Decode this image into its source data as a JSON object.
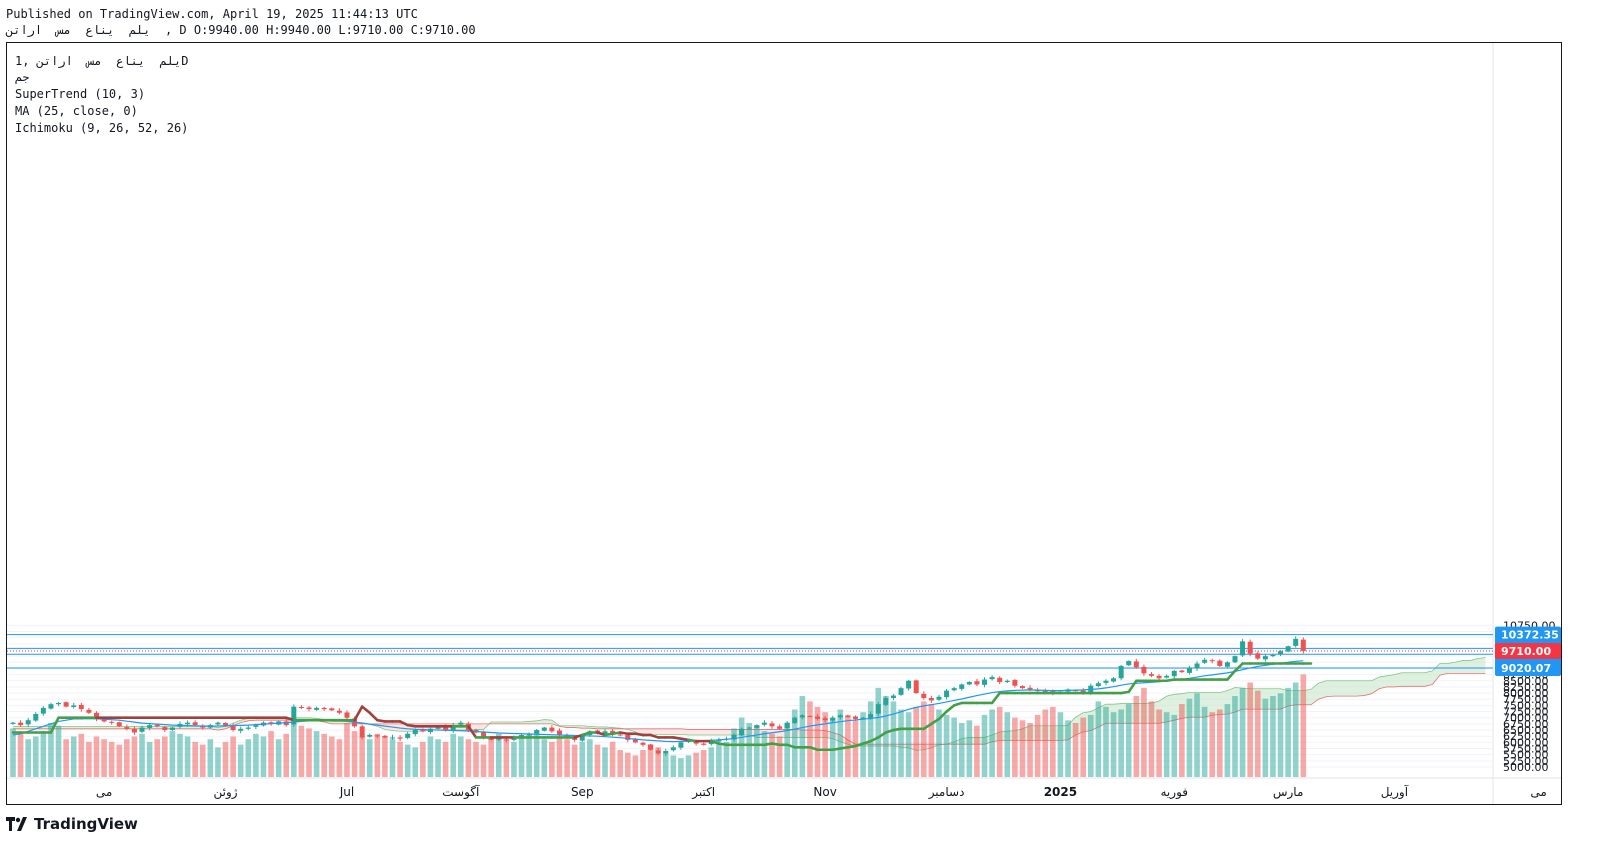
{
  "header": {
    "published": "Published on TradingView.com, April 19, 2025 11:44:13 UTC",
    "ohlc_line": "یلم  یناع  مس  اراتن  , D O:9940.00 H:9940.00 L:9710.00 C:9710.00"
  },
  "legend": {
    "symbol": "یلم  یناع  مس  اراتن ,1D",
    "exchange": "جم",
    "supertrend": "SuperTrend (10, 3)",
    "ma": "MA (25, close, 0)",
    "ichimoku": "Ichimoku (9, 26, 52, 26)"
  },
  "logo": {
    "text": "TradingView"
  },
  "chart_data": {
    "type": "candlestick",
    "interval": "1D",
    "ylim": [
      4900,
      10900
    ],
    "y_ticks": [
      5000,
      5250,
      5500,
      5750,
      6000,
      6250,
      6500,
      6750,
      7000,
      7250,
      7500,
      7750,
      8000,
      8250,
      8500,
      8750,
      9000,
      9250,
      9500,
      9750,
      10000,
      10250,
      10500,
      10750
    ],
    "y_tick_labels": [
      "5000.00",
      "5250.00",
      "5500.00",
      "5750.00",
      "6000.00",
      "6250.00",
      "6500.00",
      "6750.00",
      "7000.00",
      "7250.00",
      "7500.00",
      "7750.00",
      "8000.00",
      "8250.00",
      "8500.00",
      "8750.00",
      "9000.00",
      "9250.00",
      "9500.00",
      "9750.00",
      "10000.00",
      "10250.00",
      "10500.00",
      "10750.00"
    ],
    "x_labels": [
      {
        "label": "می",
        "bar": 12
      },
      {
        "label": "ژوئن",
        "bar": 28
      },
      {
        "label": "Jul",
        "bar": 44
      },
      {
        "label": "آگوست",
        "bar": 59
      },
      {
        "label": "Sep",
        "bar": 75
      },
      {
        "label": "اکتبر",
        "bar": 91
      },
      {
        "label": "Nov",
        "bar": 107
      },
      {
        "label": "دسامبر",
        "bar": 123
      },
      {
        "label": "2025",
        "bar": 138
      },
      {
        "label": "فوریه",
        "bar": 153
      },
      {
        "label": "مارس",
        "bar": 168
      },
      {
        "label": "آوریل",
        "bar": 182
      },
      {
        "label": "می",
        "bar": 201
      }
    ],
    "horizontal_lines": [
      {
        "value": 10372.35,
        "label": "10372.35",
        "color": "#2196f3"
      },
      {
        "value": 9814.1,
        "label": "9814.10",
        "color": "#2196f3"
      },
      {
        "value": 9573.73,
        "label": "9573.73",
        "color": "#2196f3"
      },
      {
        "value": 9020.07,
        "label": "9020.07",
        "color": "#2196f3"
      }
    ],
    "last_price": {
      "value": 9710.0,
      "label": "9710.00",
      "color": "#f23645"
    },
    "colors": {
      "up": "#26a69a",
      "down": "#ef5350",
      "supertrend_up": "#43a047",
      "supertrend_down": "#a0413c",
      "ma": "#2196f3",
      "cloud_bull": "#c8e6c9",
      "cloud_bear": "#f8d7d5"
    },
    "closes": [
      6800,
      6700,
      6900,
      7150,
      7400,
      7550,
      7600,
      7450,
      7500,
      7350,
      7200,
      6950,
      6850,
      6800,
      6650,
      6550,
      6400,
      6600,
      6700,
      6650,
      6500,
      6600,
      6750,
      6800,
      6700,
      6600,
      6700,
      6800,
      6650,
      6500,
      6550,
      6600,
      6700,
      6800,
      6750,
      6850,
      6700,
      7450,
      7400,
      7350,
      7400,
      7350,
      7300,
      7200,
      7000,
      6650,
      6200,
      6300,
      6250,
      6200,
      6200,
      6150,
      6350,
      6500,
      6450,
      6550,
      6600,
      6500,
      6700,
      6800,
      6500,
      6400,
      6200,
      6100,
      6150,
      6100,
      6200,
      6300,
      6350,
      6500,
      6600,
      6450,
      6300,
      6200,
      6100,
      6300,
      6450,
      6350,
      6450,
      6350,
      6300,
      6100,
      6000,
      5900,
      5700,
      5550,
      5650,
      5800,
      6000,
      6100,
      5950,
      5900,
      6050,
      6100,
      6150,
      6300,
      6550,
      6600,
      6700,
      6800,
      6650,
      6550,
      6800,
      7000,
      7100,
      7050,
      6950,
      6900,
      7000,
      7100,
      7050,
      6950,
      7000,
      7150,
      7550,
      7800,
      7900,
      8200,
      8500,
      8000,
      7800,
      7700,
      7850,
      8100,
      8200,
      8350,
      8450,
      8350,
      8550,
      8650,
      8450,
      8500,
      8300,
      8200,
      8150,
      8100,
      8050,
      8000,
      8050,
      8150,
      8100,
      8000,
      8300,
      8400,
      8500,
      8600,
      9100,
      9300,
      9050,
      8800,
      8700,
      8600,
      8700,
      8900,
      8850,
      9000,
      9200,
      9350,
      9300,
      9100,
      9250,
      9500,
      10100,
      9600,
      9400,
      9500,
      9550,
      9700,
      9900,
      10200,
      9710
    ],
    "volumes": [
      180,
      160,
      140,
      150,
      170,
      200,
      190,
      140,
      150,
      160,
      130,
      150,
      140,
      130,
      120,
      140,
      150,
      160,
      130,
      140,
      150,
      170,
      160,
      150,
      130,
      120,
      140,
      110,
      130,
      150,
      120,
      140,
      160,
      150,
      170,
      140,
      160,
      200,
      190,
      180,
      170,
      160,
      150,
      140,
      200,
      170,
      150,
      140,
      160,
      150,
      140,
      130,
      120,
      110,
      130,
      150,
      140,
      130,
      160,
      150,
      140,
      130,
      120,
      150,
      160,
      140,
      130,
      150,
      160,
      170,
      140,
      130,
      150,
      140,
      120,
      130,
      140,
      120,
      110,
      130,
      100,
      90,
      80,
      100,
      120,
      110,
      90,
      80,
      70,
      80,
      90,
      100,
      110,
      120,
      130,
      180,
      220,
      200,
      190,
      170,
      160,
      150,
      200,
      250,
      300,
      280,
      260,
      240,
      220,
      250,
      230,
      210,
      240,
      280,
      330,
      300,
      280,
      250,
      240,
      260,
      280,
      270,
      250,
      230,
      220,
      200,
      210,
      190,
      230,
      250,
      260,
      240,
      220,
      210,
      200,
      230,
      250,
      260,
      240,
      210,
      200,
      220,
      230,
      280,
      260,
      240,
      250,
      270,
      300,
      330,
      280,
      250,
      240,
      230,
      270,
      290,
      310,
      260,
      240,
      250,
      270,
      300,
      330,
      350,
      320,
      290,
      300,
      310,
      330,
      350,
      380
    ],
    "supertrend": [
      6400,
      6400,
      6400,
      6400,
      6400,
      6400,
      7000,
      7000,
      7000,
      7000,
      7000,
      7000,
      7000,
      7000,
      7000,
      7000,
      7000,
      7000,
      7000,
      7000,
      7000,
      7000,
      7000,
      7000,
      7000,
      7000,
      7000,
      7000,
      7000,
      7000,
      7000,
      7000,
      7000,
      7000,
      7000,
      7000,
      7000,
      6900,
      6900,
      6900,
      6900,
      6900,
      6900,
      6900,
      6900,
      6900,
      7450,
      7200,
      6900,
      6850,
      6850,
      6850,
      6700,
      6650,
      6650,
      6650,
      6650,
      6650,
      6650,
      6650,
      6650,
      6200,
      6200,
      6200,
      6200,
      6200,
      6200,
      6200,
      6200,
      6200,
      6200,
      6200,
      6200,
      6200,
      6200,
      6300,
      6400,
      6400,
      6300,
      6350,
      6400,
      6350,
      6350,
      6300,
      6300,
      6200,
      6200,
      6200,
      6150,
      6100,
      6050,
      6050,
      6050,
      5950,
      5900,
      5900,
      5900,
      5900,
      5900,
      5900,
      5950,
      5900,
      5900,
      5800,
      5800,
      5800,
      5700,
      5700,
      5700,
      5750,
      5800,
      5850,
      5950,
      6050,
      6200,
      6400,
      6500,
      6550,
      6550,
      6550,
      6550,
      6750,
      6950,
      7250,
      7500,
      7600,
      7600,
      7600,
      7600,
      7600,
      8000,
      8000,
      8000,
      8000,
      8000,
      8000,
      8000,
      8000,
      8000,
      8000,
      8000,
      8000,
      8000,
      8000,
      8000,
      8000,
      8000,
      8050,
      8500,
      8500,
      8500,
      8500,
      8500,
      8550,
      8550,
      8550,
      8550,
      8550,
      8550,
      8550,
      8550,
      8900,
      9200,
      9200,
      9200,
      9200,
      9200,
      9200,
      9200,
      9200,
      9200,
      9200
    ],
    "ma": [
      6300,
      6350,
      6450,
      6550,
      6650,
      6750,
      6850,
      6900,
      6950,
      6950,
      6960,
      6950,
      6940,
      6920,
      6900,
      6860,
      6820,
      6780,
      6760,
      6740,
      6720,
      6700,
      6690,
      6680,
      6670,
      6665,
      6660,
      6665,
      6670,
      6680,
      6690,
      6700,
      6720,
      6740,
      6760,
      6780,
      6800,
      6820,
      6850,
      6870,
      6890,
      6900,
      6900,
      6880,
      6850,
      6820,
      6780,
      6740,
      6700,
      6660,
      6620,
      6580,
      6550,
      6530,
      6520,
      6510,
      6500,
      6490,
      6480,
      6470,
      6460,
      6440,
      6420,
      6400,
      6380,
      6370,
      6360,
      6350,
      6340,
      6330,
      6320,
      6310,
      6300,
      6290,
      6280,
      6270,
      6260,
      6250,
      6230,
      6210,
      6190,
      6160,
      6130,
      6100,
      6080,
      6060,
      6040,
      6030,
      6040,
      6050,
      6060,
      6070,
      6080,
      6100,
      6120,
      6160,
      6200,
      6250,
      6300,
      6350,
      6390,
      6430,
      6480,
      6540,
      6600,
      6660,
      6710,
      6750,
      6800,
      6840,
      6880,
      6910,
      6940,
      6970,
      7010,
      7070,
      7150,
      7240,
      7340,
      7420,
      7480,
      7530,
      7580,
      7640,
      7700,
      7760,
      7830,
      7900,
      7960,
      8020,
      8060,
      8090,
      8110,
      8120,
      8130,
      8120,
      8110,
      8100,
      8100,
      8110,
      8120,
      8130,
      8150,
      8170,
      8210,
      8260,
      8320,
      8370,
      8400,
      8420,
      8440,
      8460,
      8490,
      8520,
      8560,
      8600,
      8650,
      8700,
      8740,
      8780,
      8820,
      8880,
      8950,
      9020,
      9080,
      9130,
      9170,
      9210,
      9250,
      9290,
      9310
    ]
  }
}
